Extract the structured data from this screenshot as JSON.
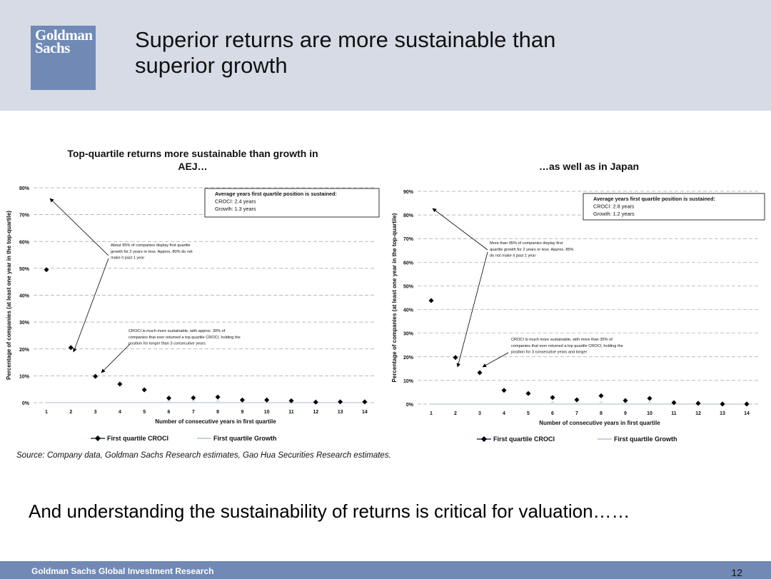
{
  "header": {
    "logo_line1": "Goldman",
    "logo_line2": "Sachs",
    "title_line1": "Superior returns are more sustainable than",
    "title_line2": "superior growth"
  },
  "source": "Source: Company data, Goldman Sachs Research estimates, Gao Hua Securities Research estimates.",
  "tagline": "And understanding the sustainability of returns is critical for valuation……",
  "footer": {
    "text": "Goldman Sachs Global Investment Research",
    "page": "12"
  },
  "colors": {
    "header_bg": "#d6dbe6",
    "brand_blue": "#7089b5",
    "croci": "#000000",
    "growth": "#c8cfe0"
  },
  "chart_data": [
    {
      "type": "scatter",
      "title": "Top-quartile returns more sustainable than growth in AEJ…",
      "title_line1": "Top-quartile returns more sustainable than growth in",
      "title_line2": "AEJ…",
      "xlabel": "Number of consecutive years in first quartile",
      "ylabel": "Percentage of companies (at least one year in the top-quartile)",
      "x": [
        1,
        2,
        3,
        4,
        5,
        6,
        7,
        8,
        9,
        10,
        11,
        12,
        13,
        14
      ],
      "ylim": [
        0,
        80
      ],
      "yticks": [
        "0%",
        "10%",
        "20%",
        "30%",
        "40%",
        "50%",
        "60%",
        "70%",
        "80%"
      ],
      "grid": true,
      "legend_position": "bottom",
      "series": [
        {
          "name": "First quartile CROCI",
          "values": [
            49.5,
            20.5,
            9.8,
            6.9,
            4.8,
            1.7,
            1.8,
            2.1,
            1.0,
            1.0,
            0.7,
            0.2,
            0.3,
            0.3
          ]
        },
        {
          "name": "First quartile Growth",
          "values": [
            0,
            0,
            0,
            0,
            0,
            0,
            0,
            0,
            0,
            0,
            0,
            0,
            0,
            0
          ]
        }
      ],
      "annotations": {
        "box_title": "Average years first quartile position is sustained:",
        "box_line1": "CROCI: 2.4 years",
        "box_line2": "Growth: 1.3 years",
        "note1_line1": "About 95% of companies display first  quartile",
        "note1_line2": "growth for 2 years or less. Approx. 80% do not",
        "note1_line3": "make it past 1 year",
        "note2_line1": "CROCI is much more sustainable, with approx. 30%  of",
        "note2_line2": "companies that ever returned a top quartile CROCI, holding the",
        "note2_line3": "position for longer than 3 consecutive  years"
      }
    },
    {
      "type": "scatter",
      "title": "…as well as in Japan",
      "title_line1": "…as well as in Japan",
      "xlabel": "Number of consecutive years in first quartile",
      "ylabel": "Percentage of companies (at least one year in the top-quartile)",
      "x": [
        1,
        2,
        3,
        4,
        5,
        6,
        7,
        8,
        9,
        10,
        11,
        12,
        13,
        14
      ],
      "ylim": [
        0,
        90
      ],
      "yticks": [
        "0%",
        "10%",
        "20%",
        "30%",
        "40%",
        "50%",
        "60%",
        "70%",
        "80%",
        "90%"
      ],
      "grid": true,
      "legend_position": "bottom",
      "series": [
        {
          "name": "First quartile CROCI",
          "values": [
            43.8,
            19.7,
            13.3,
            5.8,
            4.5,
            2.8,
            1.8,
            3.5,
            1.5,
            2.4,
            0.6,
            0.3,
            0.0,
            0.0
          ]
        },
        {
          "name": "First quartile Growth",
          "values": [
            0,
            0,
            0,
            0,
            0,
            0,
            0,
            0,
            0,
            0,
            0,
            0,
            0,
            0
          ]
        }
      ],
      "annotations": {
        "box_title": "Average years first quartile position is sustained:",
        "box_line1": "CROCI: 2.8 years",
        "box_line2": "Growth: 1.2 years",
        "note1_line1": "More than 95% of companies display first",
        "note1_line2": "quartile growth for 2 years or less. Approx. 85%",
        "note1_line3": "do not make it past 1 year",
        "note2_line1": "CROCI is much more sustainable, with more than 35% of",
        "note2_line2": "companies that ever returned a top quartile CROCI, holding the",
        "note2_line3": "position for 3 consecutive years and longer"
      }
    }
  ]
}
